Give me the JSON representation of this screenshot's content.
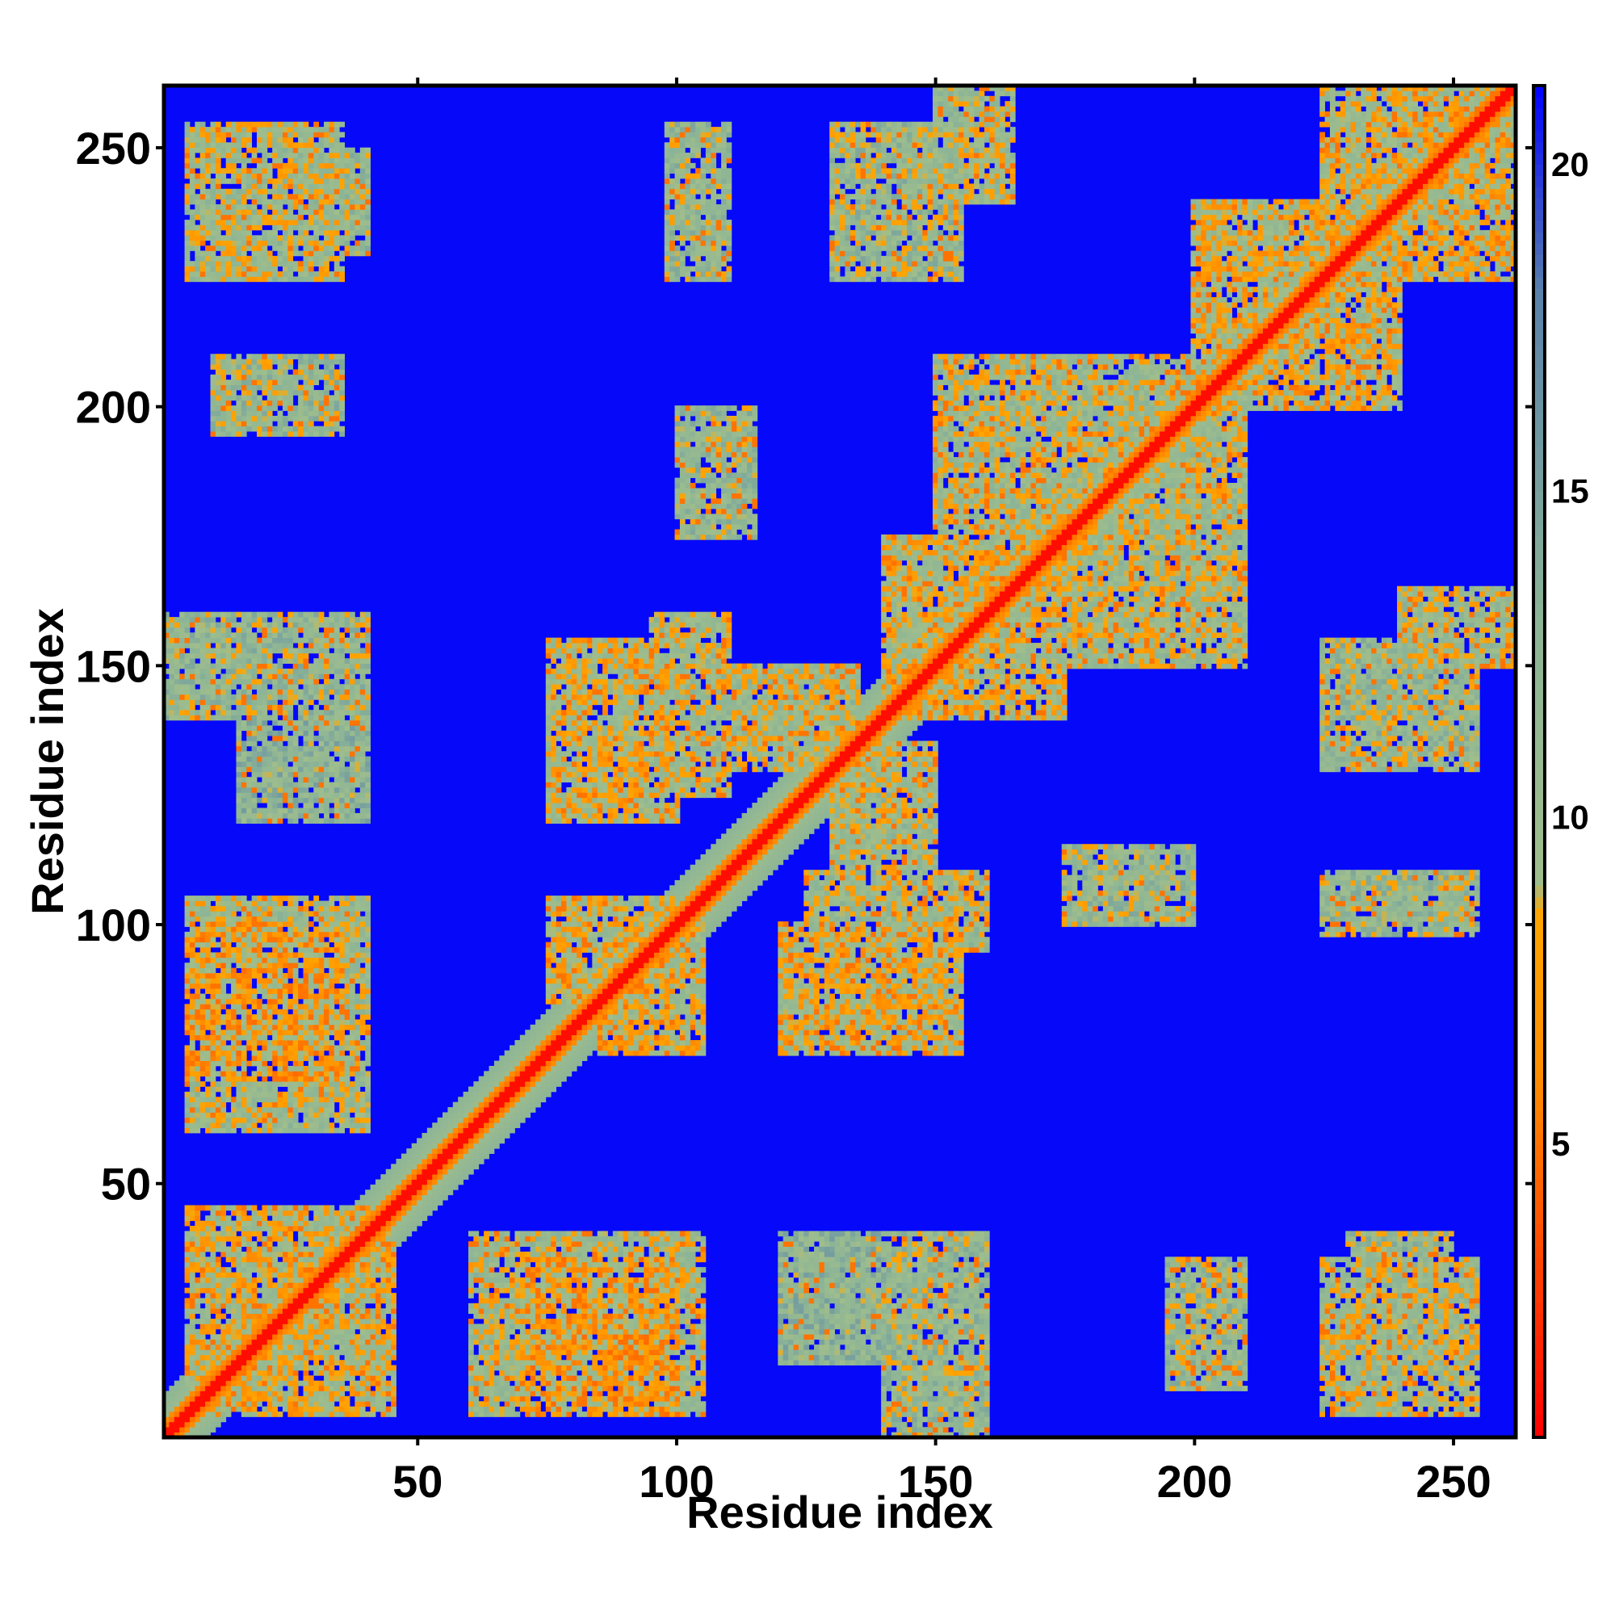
{
  "chart_data": {
    "type": "heatmap",
    "title": "",
    "xlabel": "Residue index",
    "ylabel": "Residue index",
    "xlim": [
      1,
      262
    ],
    "ylim": [
      1,
      262
    ],
    "x_ticks": [
      50,
      100,
      150,
      200,
      250
    ],
    "y_ticks": [
      50,
      100,
      150,
      200,
      250
    ],
    "colorbar": {
      "min": 0.5,
      "max": 21.2,
      "ticks": [
        5,
        10,
        15,
        20
      ],
      "colors": [
        "#ff0000",
        "#ff8c00",
        "#8fbc8f",
        "#4682b4",
        "#0000ff"
      ]
    },
    "matrix_description": "pairwise residue distance map",
    "diagonal_value": 1,
    "background_value": 21,
    "contact_bands": [
      {
        "i": [
          10,
          45
        ],
        "j": [
          5,
          40
        ],
        "value": 9
      },
      {
        "i": [
          15,
          35
        ],
        "j": [
          60,
          105
        ],
        "value": 10
      },
      {
        "i": [
          60,
          105
        ],
        "j": [
          5,
          40
        ],
        "value": 10
      },
      {
        "i": [
          70,
          100
        ],
        "j": [
          5,
          35
        ],
        "value": 8
      },
      {
        "i": [
          85,
          105
        ],
        "j": [
          75,
          105
        ],
        "value": 9
      },
      {
        "i": [
          95,
          110
        ],
        "j": [
          125,
          160
        ],
        "value": 10
      },
      {
        "i": [
          120,
          155
        ],
        "j": [
          75,
          100
        ],
        "value": 9
      },
      {
        "i": [
          130,
          150
        ],
        "j": [
          100,
          135
        ],
        "value": 10
      },
      {
        "i": [
          145,
          175
        ],
        "j": [
          140,
          175
        ],
        "value": 9
      },
      {
        "i": [
          150,
          200
        ],
        "j": [
          180,
          210
        ],
        "value": 10
      },
      {
        "i": [
          170,
          200
        ],
        "j": [
          150,
          180
        ],
        "value": 10
      },
      {
        "i": [
          200,
          230
        ],
        "j": [
          200,
          240
        ],
        "value": 9
      },
      {
        "i": [
          225,
          260
        ],
        "j": [
          225,
          262
        ],
        "value": 9
      },
      {
        "i": [
          230,
          250
        ],
        "j": [
          5,
          40
        ],
        "value": 11
      },
      {
        "i": [
          5,
          40
        ],
        "j": [
          230,
          250
        ],
        "value": 11
      },
      {
        "i": [
          15,
          40
        ],
        "j": [
          120,
          160
        ],
        "value": 12
      },
      {
        "i": [
          20,
          35
        ],
        "j": [
          195,
          210
        ],
        "value": 11
      },
      {
        "i": [
          140,
          160
        ],
        "j": [
          1,
          40
        ],
        "value": 11
      },
      {
        "i": [
          195,
          210
        ],
        "j": [
          10,
          30
        ],
        "value": 11
      },
      {
        "i": [
          240,
          262
        ],
        "j": [
          150,
          165
        ],
        "value": 10
      },
      {
        "i": [
          100,
          115
        ],
        "j": [
          175,
          200
        ],
        "value": 11
      },
      {
        "i": [
          98,
          110
        ],
        "j": [
          225,
          255
        ],
        "value": 11
      },
      {
        "i": [
          130,
          155
        ],
        "j": [
          225,
          255
        ],
        "value": 11
      },
      {
        "i": [
          5,
          35
        ],
        "j": [
          225,
          255
        ],
        "value": 10
      }
    ]
  }
}
